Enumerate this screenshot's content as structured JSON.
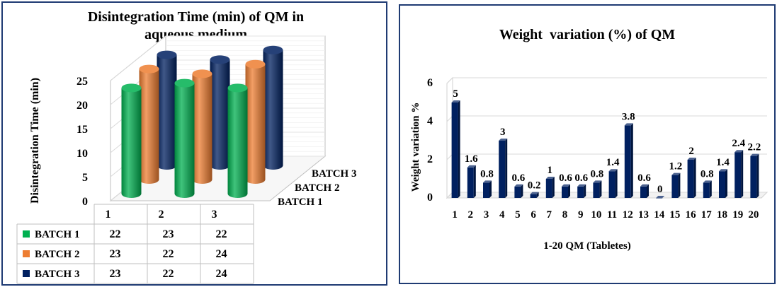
{
  "chart_data": [
    {
      "type": "bar",
      "subtype": "3d-cylinder",
      "title_line1": "Disintegration Time (min) of QM in",
      "title_line2": "aqueous medium",
      "ylabel": "Disintegration  Time  (min)",
      "ylim": [
        0,
        25
      ],
      "yticks": [
        "0",
        "5",
        "10",
        "15",
        "20",
        "25"
      ],
      "categories": [
        "1",
        "2",
        "3"
      ],
      "series": [
        {
          "name": "BATCH 1",
          "color": "#00b050",
          "values": [
            22,
            23,
            22
          ]
        },
        {
          "name": "BATCH 2",
          "color": "#ed7d31",
          "values": [
            23,
            22,
            24
          ]
        },
        {
          "name": "BATCH 3",
          "color": "#002060",
          "values": [
            23,
            22,
            24
          ]
        }
      ],
      "depth_labels": [
        "BATCH 3",
        "BATCH 2",
        "BATCH 1"
      ],
      "data_table": true
    },
    {
      "type": "bar",
      "title": "Weight  variation (%) of QM",
      "xlabel": "1-20 QM (Tabletes)",
      "ylabel": "Weight variation %",
      "ylim": [
        0,
        6
      ],
      "yticks": [
        "0",
        "2",
        "4",
        "6"
      ],
      "color": "#002060",
      "categories": [
        "1",
        "2",
        "3",
        "4",
        "5",
        "6",
        "7",
        "8",
        "9",
        "10",
        "11",
        "12",
        "13",
        "14",
        "15",
        "16",
        "17",
        "18",
        "19",
        "20"
      ],
      "values": [
        5,
        1.6,
        0.8,
        3,
        0.6,
        0.2,
        1,
        0.6,
        0.6,
        0.8,
        1.4,
        3.8,
        0.6,
        0,
        1.2,
        2,
        0.8,
        1.4,
        2.4,
        2.2
      ],
      "labels": [
        "5",
        "1.6",
        "0.8",
        "3",
        "0.6",
        "0.2",
        "1",
        "0.6",
        "0.6",
        "0.8",
        "1.4",
        "3.8",
        "0.6",
        "0",
        "1.2",
        "2",
        "0.8",
        "1.4",
        "2.4",
        "2.2"
      ]
    }
  ]
}
